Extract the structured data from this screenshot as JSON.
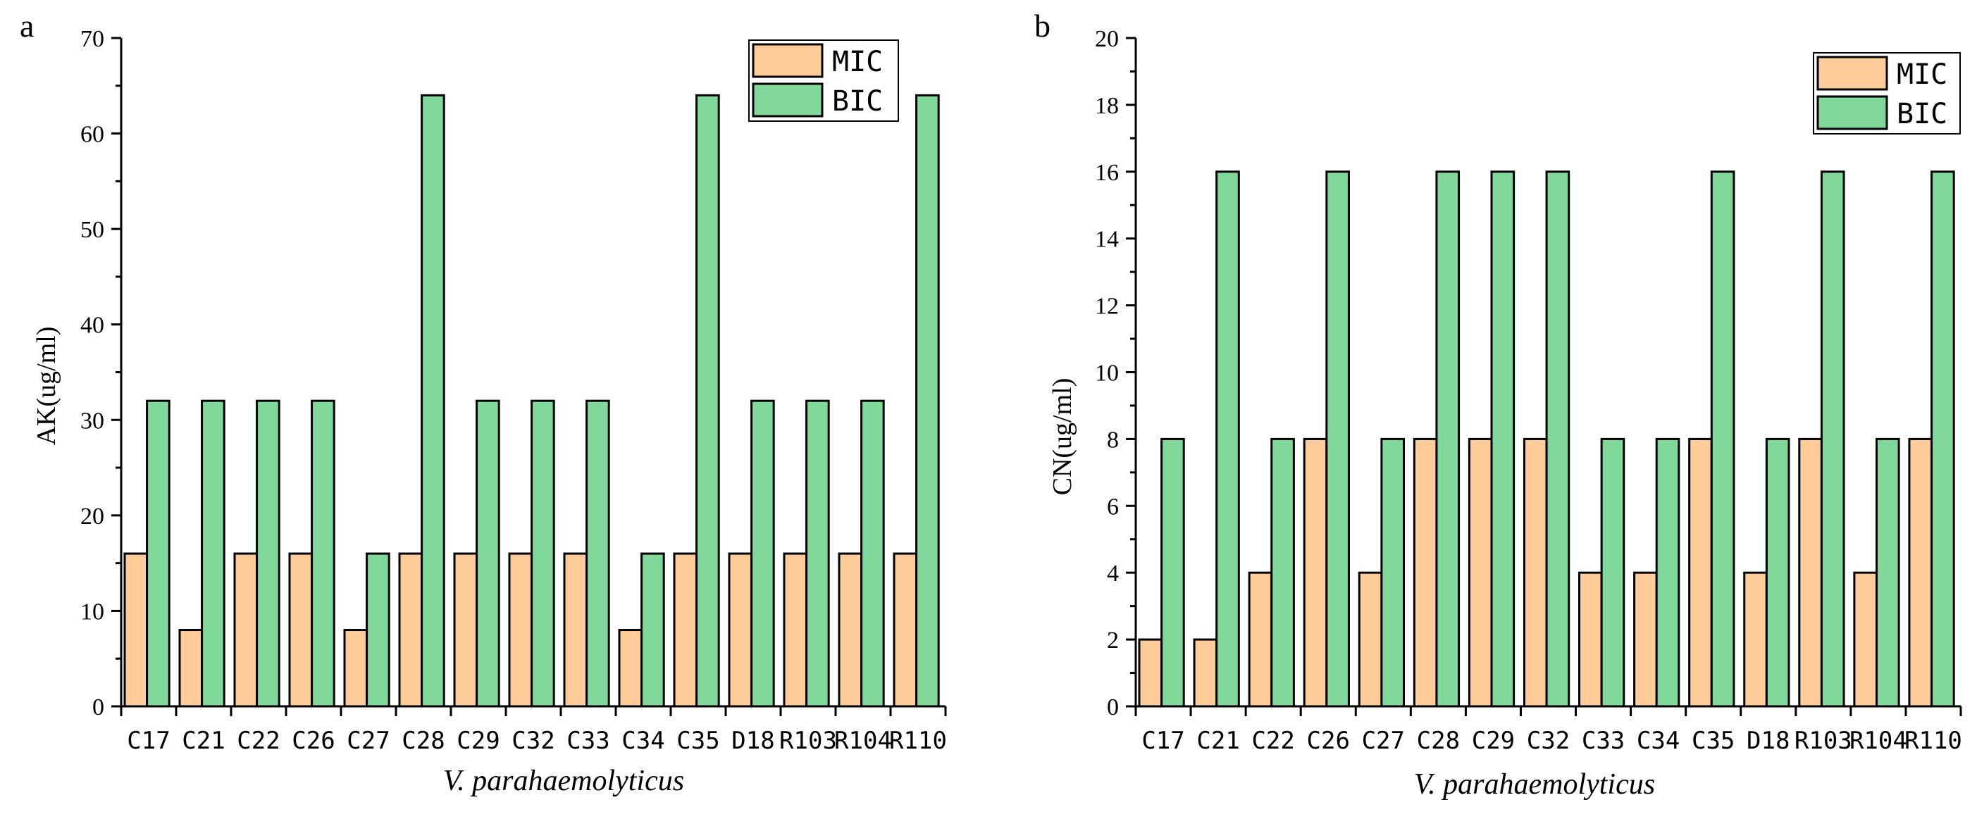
{
  "colors": {
    "mic": "#FFCC99",
    "bic": "#80D89A"
  },
  "chart_data": [
    {
      "panel": "a",
      "type": "bar",
      "categories": [
        "C17",
        "C21",
        "C22",
        "C26",
        "C27",
        "C28",
        "C29",
        "C32",
        "C33",
        "C34",
        "C35",
        "D18",
        "R103",
        "R104",
        "R110"
      ],
      "series": [
        {
          "name": "MIC",
          "values": [
            16,
            8,
            16,
            16,
            8,
            16,
            16,
            16,
            16,
            8,
            16,
            16,
            16,
            16,
            16
          ]
        },
        {
          "name": "BIC",
          "values": [
            32,
            32,
            32,
            32,
            16,
            64,
            32,
            32,
            32,
            16,
            64,
            32,
            32,
            32,
            64
          ]
        }
      ],
      "ylabel": "AK(ug/ml)",
      "xlabel": "V. parahaemolyticus",
      "ylim": [
        0,
        70
      ],
      "yticks": [
        0,
        10,
        20,
        30,
        40,
        50,
        60,
        70
      ],
      "legend_position": "top-right"
    },
    {
      "panel": "b",
      "type": "bar",
      "categories": [
        "C17",
        "C21",
        "C22",
        "C26",
        "C27",
        "C28",
        "C29",
        "C32",
        "C33",
        "C34",
        "C35",
        "D18",
        "R103",
        "R104",
        "R110"
      ],
      "series": [
        {
          "name": "MIC",
          "values": [
            2,
            2,
            4,
            8,
            4,
            8,
            8,
            8,
            4,
            4,
            8,
            4,
            8,
            4,
            8
          ]
        },
        {
          "name": "BIC",
          "values": [
            8,
            16,
            8,
            16,
            8,
            16,
            16,
            16,
            8,
            8,
            16,
            8,
            16,
            8,
            16
          ]
        }
      ],
      "ylabel": "CN(ug/ml)",
      "xlabel": "V. parahaemolyticus",
      "ylim": [
        0,
        20
      ],
      "yticks": [
        0,
        2,
        4,
        6,
        8,
        10,
        12,
        14,
        16,
        18,
        20
      ],
      "legend_position": "top-right"
    }
  ]
}
